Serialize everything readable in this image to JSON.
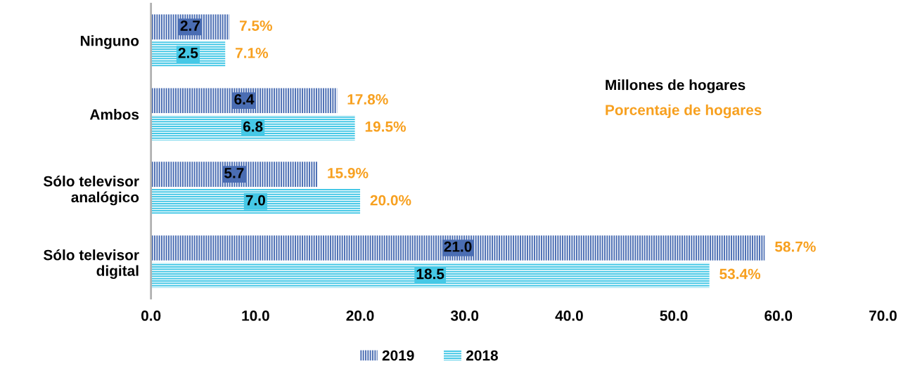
{
  "chart_data": {
    "type": "bar",
    "orientation": "horizontal",
    "categories": [
      "Ninguno",
      "Ambos",
      "Sólo televisor\nanalógico",
      "Sólo televisor\ndigital"
    ],
    "series": [
      {
        "name": "2019",
        "color": "#4a6db3",
        "values": [
          7.5,
          17.8,
          15.9,
          58.7
        ],
        "value_labels": [
          "7.5%",
          "17.8%",
          "15.9%",
          "58.7%"
        ]
      },
      {
        "name": "2018",
        "color": "#45c8e6",
        "values": [
          7.1,
          19.5,
          20.0,
          53.4
        ],
        "value_labels": [
          "7.1%",
          "19.5%",
          "20.0%",
          "53.4%"
        ]
      }
    ],
    "xlim": [
      0,
      70
    ],
    "xticks": [
      {
        "value": 0,
        "label": "0.0"
      },
      {
        "value": 10,
        "label": "10.0"
      },
      {
        "value": 20,
        "label": "20.0"
      },
      {
        "value": 30,
        "label": "30.0"
      },
      {
        "value": 40,
        "label": "40.0"
      },
      {
        "value": 50,
        "label": "50.0"
      },
      {
        "value": 60,
        "label": "60.0"
      },
      {
        "value": 70,
        "label": "70.0"
      }
    ],
    "annotations": [
      {
        "text": "2.7",
        "x": 3.75,
        "y": "Ninguno"
      },
      {
        "text": "2.5",
        "x": 3.55,
        "y": "Ninguno"
      },
      {
        "text": "6.4",
        "x": 8.9,
        "y": "Ambos"
      },
      {
        "text": "6.8",
        "x": 9.75,
        "y": "Ambos"
      },
      {
        "text": "5.7",
        "x": 7.95,
        "y": "Sólo televisor\nanalógico"
      },
      {
        "text": "7.0",
        "x": 10.0,
        "y": "Sólo televisor\nanalógico"
      },
      {
        "text": "21.0",
        "x": 29.35,
        "y": "Sólo televisor\ndigital"
      },
      {
        "text": "18.5",
        "x": 26.7,
        "y": "Sólo televisor\ndigital"
      },
      "Millones de hogares",
      "Porcentaje de hogares"
    ],
    "legend": "bottom",
    "grid": false
  }
}
